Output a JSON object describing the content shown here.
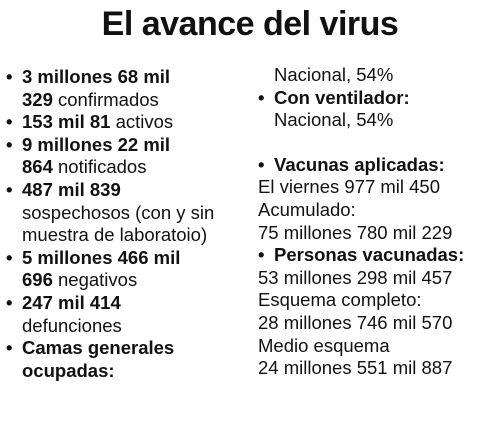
{
  "title": "El avance del virus",
  "bullet": "•",
  "left": {
    "confirmados_num_a": "3 millones 68 mil",
    "confirmados_num_b": "329",
    "confirmados_label": " confirmados",
    "activos_num": "153 mil 81",
    "activos_label": " activos",
    "notificados_num_a": "9 millones 22 mil",
    "notificados_num_b": "864",
    "notificados_label": " notificados",
    "sospechosos_num": "487 mil 839",
    "sospechosos_label_a": "sospechosos (con y sin",
    "sospechosos_label_b": "muestra de laboratoio)",
    "negativos_num_a": "5 millones 466 mil",
    "negativos_num_b": "696",
    "negativos_label": " negativos",
    "defunciones_num": "247 mil 414",
    "defunciones_label": "defunciones",
    "camas_label_a": "Camas generales",
    "camas_label_b": "ocupadas:"
  },
  "right": {
    "camas_value": "Nacional, 54%",
    "ventilador_label": "Con ventilador:",
    "ventilador_value": "Nacional, 54%",
    "vacunas_label": "Vacunas aplicadas:",
    "vacunas_viernes": "El viernes 977 mil 450",
    "acumulado_label": "Acumulado:",
    "acumulado_value": "75 millones 780 mil 229",
    "personas_label": "Personas vacunadas:",
    "personas_value": "53 millones 298 mil 457",
    "completo_label": "Esquema completo:",
    "completo_value": "28 millones 746 mil 570",
    "medio_label": "Medio esquema",
    "medio_value": "24 millones 551 mil 887"
  }
}
